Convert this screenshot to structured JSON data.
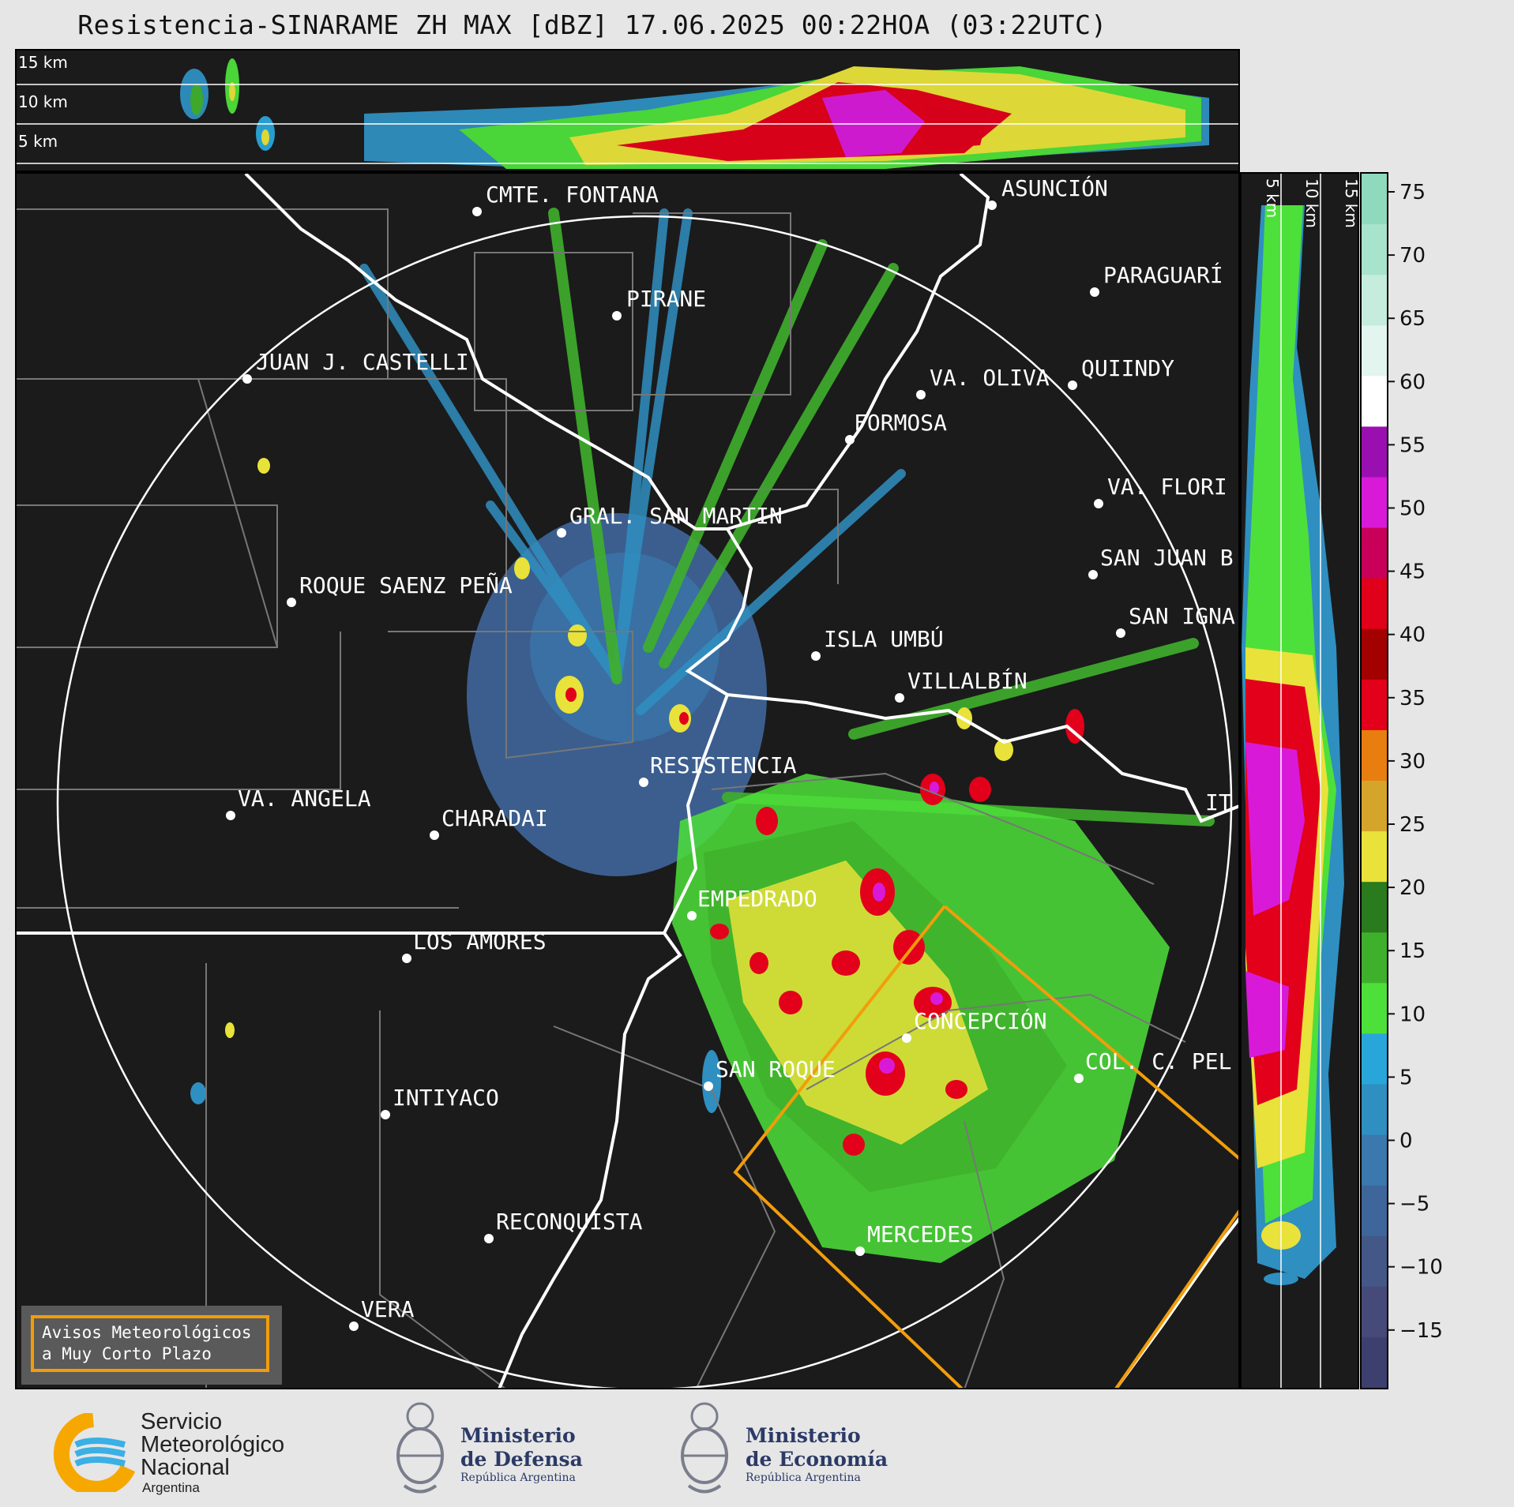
{
  "title": "Resistencia-SINARAME ZH MAX [dBZ] 17.06.2025 00:22HOA (03:22UTC)",
  "top_panel": {
    "height_labels": [
      "15 km",
      "10 km",
      "5 km"
    ]
  },
  "side_panel": {
    "height_labels": [
      "5 km",
      "10 km",
      "15 km"
    ]
  },
  "colorbar": {
    "ticks": [
      "75",
      "70",
      "65",
      "60",
      "55",
      "50",
      "45",
      "40",
      "35",
      "30",
      "25",
      "20",
      "15",
      "10",
      "5",
      "0",
      "−5",
      "−10",
      "−15"
    ],
    "colors": [
      "#8fd9bd",
      "#a8e3cb",
      "#c5ecdd",
      "#e2f5ee",
      "#ffffff",
      "#9a0fb0",
      "#d81ad8",
      "#c8005a",
      "#e0001a",
      "#a30000",
      "#e2001a",
      "#e87d10",
      "#d4a52a",
      "#e8e23a",
      "#2a7a1e",
      "#3fb02c",
      "#4de03a",
      "#29a6d9",
      "#2f8fc0",
      "#3a78ad",
      "#3f669b",
      "#435887",
      "#464a78",
      "#3d3f6e"
    ],
    "accent": "#f29d0b"
  },
  "cities": [
    {
      "name": "CMTE. FONTANA"
    },
    {
      "name": "ASUNCIÓN"
    },
    {
      "name": "PARAGUARÍ"
    },
    {
      "name": "PIRANE"
    },
    {
      "name": "JUAN J. CASTELLI"
    },
    {
      "name": "VA. OLIVA"
    },
    {
      "name": "QUIINDY"
    },
    {
      "name": "FORMOSA"
    },
    {
      "name": "VA. FLORI"
    },
    {
      "name": "GRAL. SAN MARTIN"
    },
    {
      "name": "SAN JUAN B"
    },
    {
      "name": "ROQUE SAENZ PEÑA"
    },
    {
      "name": "SAN IGNA"
    },
    {
      "name": "ISLA UMBÚ"
    },
    {
      "name": "VILLALBÍN"
    },
    {
      "name": "RESISTENCIA"
    },
    {
      "name": "VA. ANGELA"
    },
    {
      "name": "CHARADAI"
    },
    {
      "name": "IT"
    },
    {
      "name": "EMPEDRADO"
    },
    {
      "name": "LOS AMORES"
    },
    {
      "name": "CONCEPCIÓN"
    },
    {
      "name": "COL. C. PEL"
    },
    {
      "name": "SAN ROQUE"
    },
    {
      "name": "INTIYACO"
    },
    {
      "name": "RECONQUISTA"
    },
    {
      "name": "MERCEDES"
    },
    {
      "name": "VERA"
    }
  ],
  "alert": {
    "line1": "Avisos Meteorológicos",
    "line2": "a Muy Corto Plazo"
  },
  "footer": {
    "smn": {
      "line1": "Servicio",
      "line2": "Meteorológico",
      "line3": "Nacional",
      "line4": "Argentina"
    },
    "defensa": {
      "name1": "Ministerio",
      "name2": "de Defensa",
      "sub": "República Argentina"
    },
    "economia": {
      "name1": "Ministerio",
      "name2": "de Economía",
      "sub": "República Argentina"
    }
  }
}
